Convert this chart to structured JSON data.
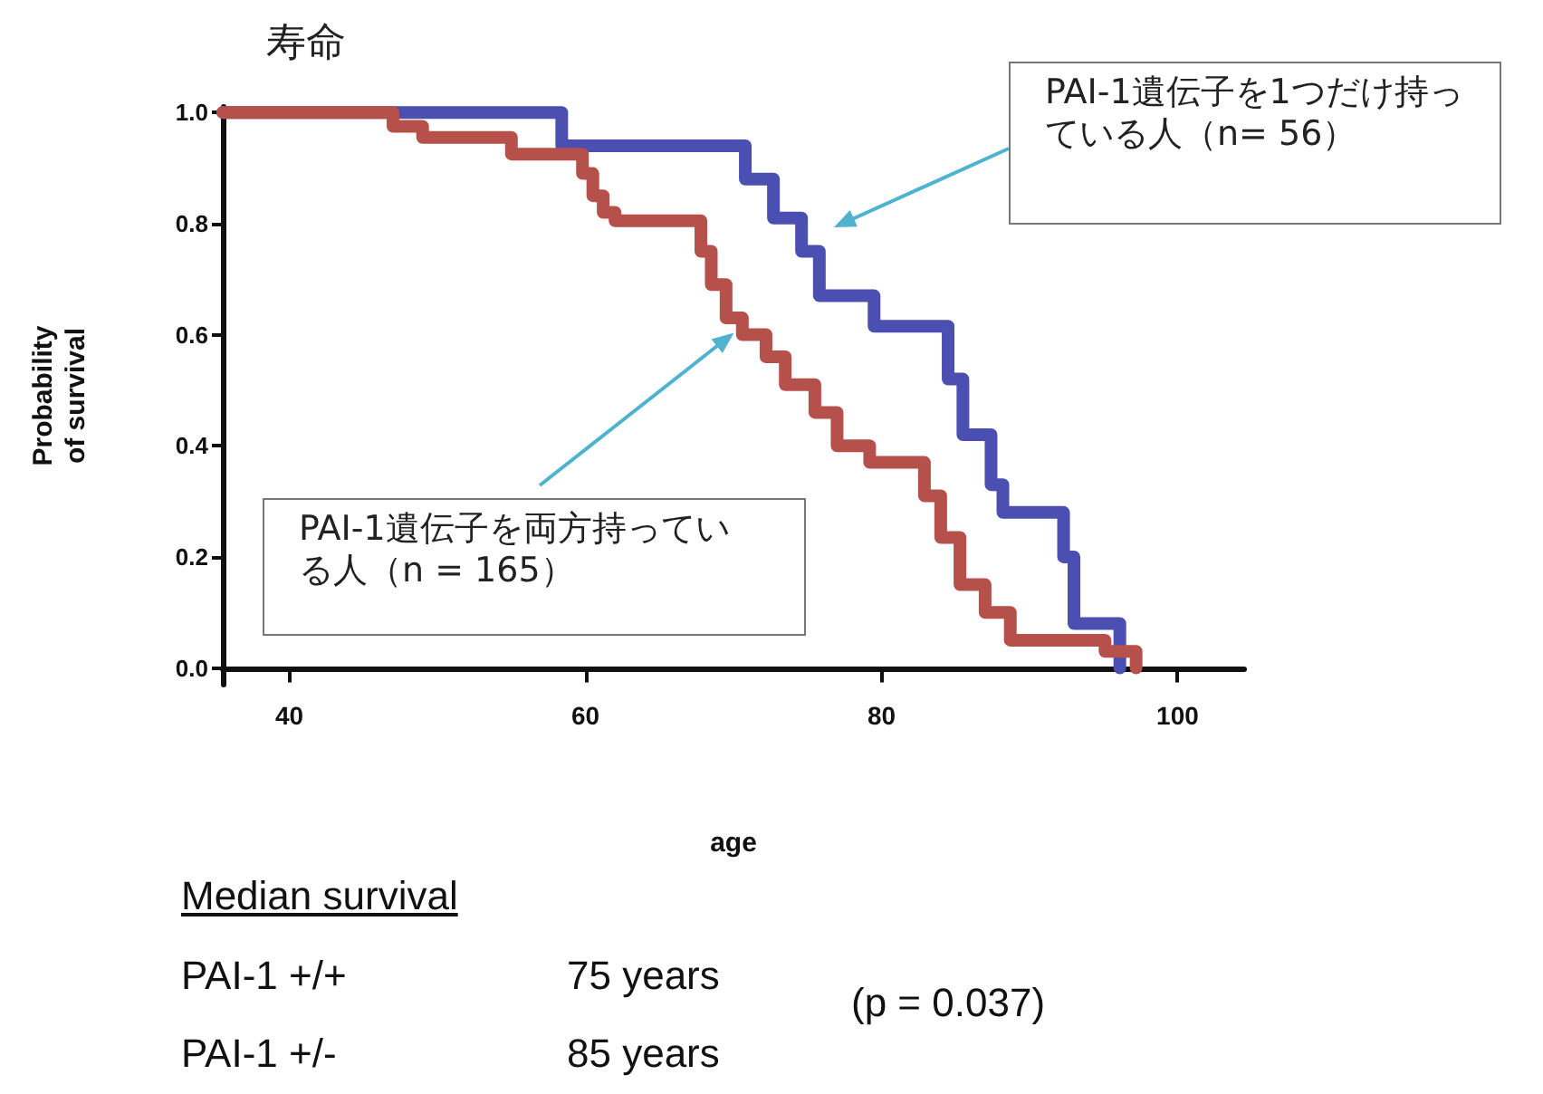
{
  "chart_data": {
    "type": "step",
    "title": "寿命",
    "xlabel": "age",
    "ylabel": "Probability of survival",
    "xlim": [
      35.5,
      104.5
    ],
    "xticks": [
      40,
      60,
      80,
      100
    ],
    "ylim": [
      -0.03,
      1.01
    ],
    "yticks": [
      {
        "value": 0,
        "label": "0.0"
      },
      {
        "value": 0.2,
        "label": "0.2"
      },
      {
        "value": 0.4,
        "label": "0.4"
      },
      {
        "value": 0.6,
        "label": "0.6"
      },
      {
        "value": 0.8,
        "label": "0.8"
      },
      {
        "value": 1,
        "label": "1.0"
      }
    ],
    "grid": false,
    "marker": "none",
    "line_style": "solid",
    "series": [
      {
        "color": "#4b4fb2",
        "x": [
          35.5,
          58.4,
          70.8,
          72.7,
          74.6,
          75.8,
          79.5,
          84.5,
          85.5,
          87.4,
          88.2,
          92.3,
          93.0,
          96.1
        ],
        "values": [
          1.0,
          0.94,
          0.88,
          0.81,
          0.75,
          0.67,
          0.615,
          0.52,
          0.42,
          0.33,
          0.28,
          0.2,
          0.08,
          0.0
        ]
      },
      {
        "color": "#b5504a",
        "x": [
          35.5,
          47,
          49,
          55,
          59.8,
          60.5,
          61.2,
          62,
          67.8,
          68.5,
          69.5,
          70.6,
          72.2,
          73.5,
          75.5,
          77,
          79.2,
          82.9,
          84,
          85.3,
          87,
          88.7,
          95.1,
          97.2
        ],
        "values": [
          1.0,
          0.975,
          0.955,
          0.925,
          0.89,
          0.85,
          0.82,
          0.805,
          0.75,
          0.69,
          0.63,
          0.6,
          0.56,
          0.51,
          0.46,
          0.4,
          0.37,
          0.31,
          0.235,
          0.15,
          0.1,
          0.05,
          0.03,
          0.0
        ]
      }
    ],
    "annotations": [
      "PAI-1遺伝子を1つだけ持っている人（n= 56）",
      "PAI-1遺伝子を両方持っている人（n = 165）",
      "Median survival",
      "PAI-1 +/+",
      "75 years",
      "PAI-1 +/-",
      "85 years",
      "(p = 0.037)"
    ]
  }
}
